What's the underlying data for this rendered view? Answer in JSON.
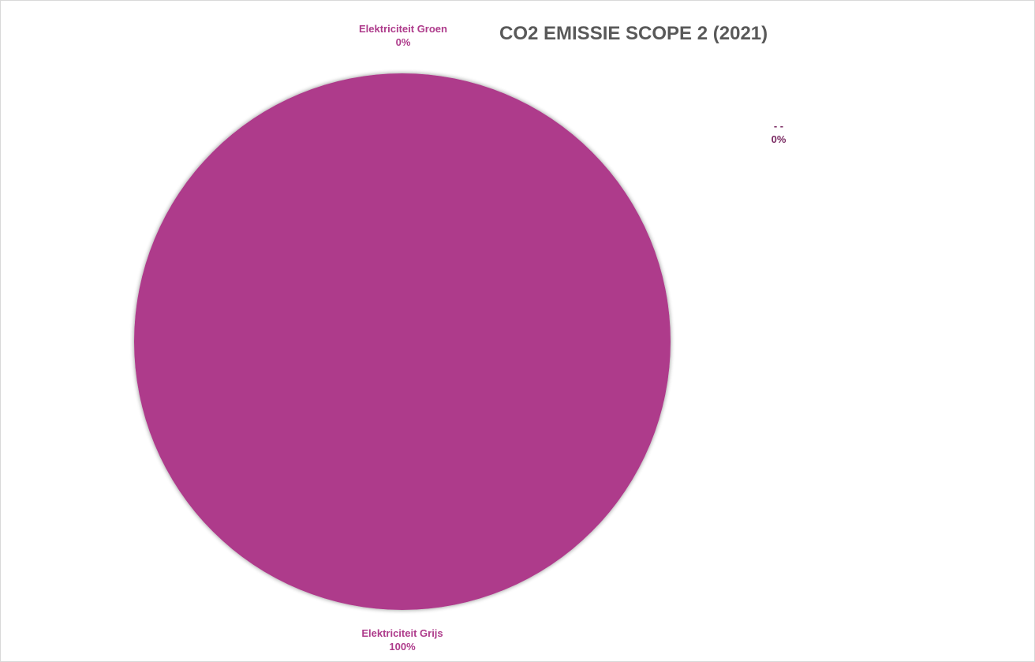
{
  "chart_data": {
    "type": "pie",
    "title": "CO2 EMISSIE SCOPE 2 (2021)",
    "slices": [
      {
        "label": "Elektriciteit Grijs",
        "value": 100,
        "value_label": "100%",
        "color": "#ae3b8b"
      },
      {
        "label": "Elektriciteit Groen",
        "value": 0,
        "value_label": "0%",
        "color": "#ae3b8b"
      },
      {
        "label": "- -",
        "value": 0,
        "value_label": "0%",
        "color": "#7a2a62"
      }
    ],
    "legend": "none"
  }
}
